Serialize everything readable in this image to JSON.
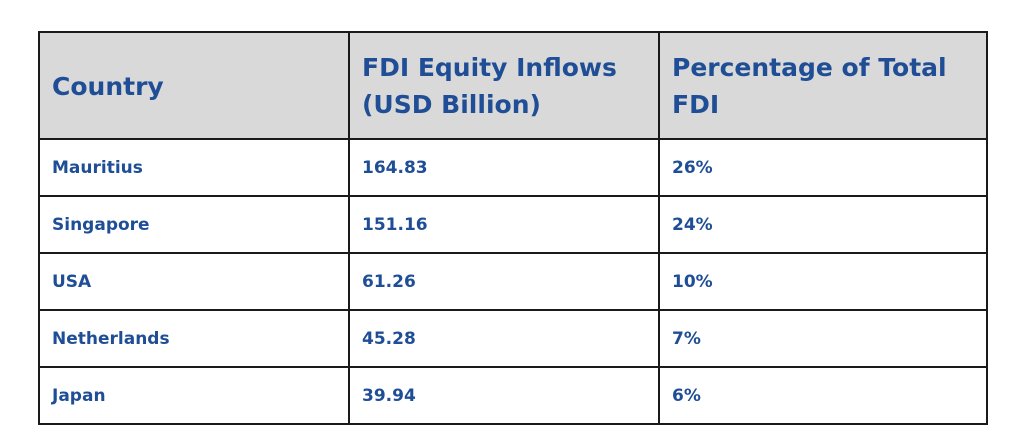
{
  "table": {
    "headers": [
      "Country",
      "FDI Equity Inflows (USD Billion)",
      "Percentage of Total FDI"
    ],
    "rows": [
      [
        "Mauritius",
        "164.83",
        "26%"
      ],
      [
        "Singapore",
        "151.16",
        "24%"
      ],
      [
        "USA",
        "61.26",
        "10%"
      ],
      [
        "Netherlands",
        "45.28",
        "7%"
      ],
      [
        "Japan",
        "39.94",
        "6%"
      ]
    ]
  },
  "colors": {
    "text": "#1f4e96",
    "header_bg": "#d9d9d9",
    "border": "#1a1a1a"
  }
}
